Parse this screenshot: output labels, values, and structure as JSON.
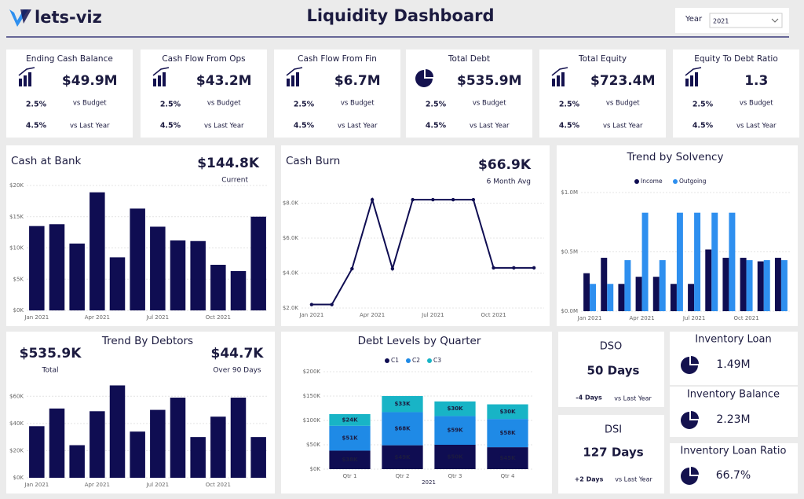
{
  "header": {
    "logo": "lets-viz",
    "title": "Liquidity Dashboard",
    "filter_label": "Year",
    "filter_value": "2021"
  },
  "kpis": [
    {
      "title": "Ending Cash Balance",
      "value": "$49.9M",
      "budget_change": "2.5%",
      "budget_label": "vs Budget",
      "last_year_change": "4.5%",
      "last_year_label": "vs Last Year"
    },
    {
      "title": "Cash Flow From Ops",
      "value": "$43.2M",
      "budget_change": "2.5%",
      "budget_label": "vs Budget",
      "last_year_change": "4.5%",
      "last_year_label": "vs Last Year"
    },
    {
      "title": "Cash Flow From Fin",
      "value": "$6.7M",
      "budget_change": "2.5%",
      "budget_label": "vs Budget",
      "last_year_change": "4.5%",
      "last_year_label": "vs Last Year"
    },
    {
      "title": "Total Debt",
      "value": "$535.9M",
      "budget_change": "2.5%",
      "budget_label": "vs Budget",
      "last_year_change": "4.5%",
      "last_year_label": "vs Last Year"
    },
    {
      "title": "Total Equity",
      "value": "$723.4M",
      "budget_change": "2.5%",
      "budget_label": "vs Budget",
      "last_year_change": "4.5%",
      "last_year_label": "vs Last Year"
    },
    {
      "title": "Equity To Debt Ratio",
      "value": "1.3",
      "budget_change": "2.5%",
      "budget_label": "vs Budget",
      "last_year_change": "4.5%",
      "last_year_label": "vs Last Year"
    }
  ],
  "chart_data": [
    {
      "type": "bar",
      "title": "Cash at Bank",
      "kpis": [
        {
          "value": "$144.8K",
          "label": "Current"
        }
      ],
      "categories": [
        "Jan 2021",
        null,
        null,
        "Apr 2021",
        null,
        null,
        "Jul 2021",
        null,
        null,
        "Oct 2021",
        null,
        null
      ],
      "values": [
        13500,
        13800,
        10700,
        18900,
        8500,
        16300,
        13400,
        11200,
        11100,
        7300,
        6300,
        15000
      ],
      "color": "#0f0d52",
      "ylim": [
        0,
        20000
      ],
      "yticks": [
        {
          "value": 0,
          "label": "$0K"
        },
        {
          "value": 5000,
          "label": "$5K"
        },
        {
          "value": 10000,
          "label": "$10K"
        },
        {
          "value": 15000,
          "label": "$15K"
        },
        {
          "value": 20000,
          "label": "$20K"
        }
      ],
      "grid": true
    },
    {
      "type": "line",
      "title": "Cash Burn",
      "kpis": [
        {
          "value": "$66.9K",
          "label": "6 Month Avg"
        }
      ],
      "categories": [
        "Jan 2021",
        null,
        null,
        "Apr 2021",
        null,
        null,
        "Jul 2021",
        null,
        null,
        "Oct 2021",
        null,
        null
      ],
      "values": [
        2200,
        2200,
        4250,
        8200,
        4250,
        8200,
        8200,
        8200,
        8200,
        4300,
        4300,
        4300
      ],
      "color": "#0f0d52",
      "ylim": [
        2000,
        8700
      ],
      "yticks": [
        {
          "value": 2000,
          "label": "$2.0K"
        },
        {
          "value": 4000,
          "label": "$4.0K"
        },
        {
          "value": 6000,
          "label": "$6.0K"
        },
        {
          "value": 8000,
          "label": "$8.0K"
        }
      ],
      "grid": true
    },
    {
      "type": "grouped_bar",
      "title": "Trend by Solvency",
      "legend": "top",
      "categories": [
        "Jan 2021",
        null,
        null,
        "Apr 2021",
        null,
        null,
        "Jul 2021",
        null,
        null,
        "Oct 2021",
        null,
        null
      ],
      "series": [
        {
          "name": "Income",
          "color": "#0f0d52",
          "values": [
            320000,
            450000,
            230000,
            290000,
            290000,
            230000,
            230000,
            520000,
            450000,
            450000,
            420000,
            450000
          ]
        },
        {
          "name": "Outgoing",
          "color": "#2e8fef",
          "values": [
            230000,
            230000,
            430000,
            830000,
            430000,
            830000,
            830000,
            830000,
            830000,
            430000,
            430000,
            430000
          ]
        }
      ],
      "ylim": [
        0,
        1000000
      ],
      "yticks": [
        {
          "value": 0,
          "label": "$0.0M"
        },
        {
          "value": 500000,
          "label": "$0.5M"
        },
        {
          "value": 1000000,
          "label": "$1.0M"
        }
      ],
      "grid": true
    },
    {
      "type": "bar",
      "title": "Trend By Debtors",
      "kpis": [
        {
          "value": "$535.9K",
          "label": "Total"
        },
        {
          "value": "$44.7K",
          "label": "Over 90 Days"
        }
      ],
      "categories": [
        "Jan 2021",
        null,
        null,
        "Apr 2021",
        null,
        null,
        "Jul 2021",
        null,
        null,
        "Oct 2021",
        null,
        null
      ],
      "values": [
        38000,
        51000,
        24000,
        49000,
        68000,
        34000,
        50000,
        59000,
        30000,
        45000,
        59000,
        30000
      ],
      "color": "#0f0d52",
      "ylim": [
        0,
        70000
      ],
      "yticks": [
        {
          "value": 0,
          "label": "$0K"
        },
        {
          "value": 20000,
          "label": "$20K"
        },
        {
          "value": 40000,
          "label": "$40K"
        },
        {
          "value": 60000,
          "label": "$60K"
        }
      ],
      "grid": true
    },
    {
      "type": "stacked_bar",
      "title": "Debt Levels by Quarter",
      "legend": "top",
      "xlabel": "2021",
      "categories": [
        "Qtr 1",
        "Qtr 2",
        "Qtr 3",
        "Qtr 4"
      ],
      "series": [
        {
          "name": "C1",
          "color": "#0f0d52",
          "values": [
            38000,
            49000,
            50000,
            45000
          ],
          "value_labels": [
            "$38K",
            "$49K",
            "$50K",
            "$45K"
          ]
        },
        {
          "name": "C2",
          "color": "#1f8ae6",
          "values": [
            51000,
            68000,
            59000,
            58000
          ],
          "value_labels": [
            "$51K",
            "$68K",
            "$59K",
            "$58K"
          ]
        },
        {
          "name": "C3",
          "color": "#18b4c6",
          "values": [
            24000,
            33000,
            30000,
            30000
          ],
          "value_labels": [
            "$24K",
            "$33K",
            "$30K",
            "$30K"
          ]
        }
      ],
      "ylim": [
        0,
        200000
      ],
      "yticks": [
        {
          "value": 0,
          "label": "$0K"
        },
        {
          "value": 50000,
          "label": "$50K"
        },
        {
          "value": 100000,
          "label": "$100K"
        },
        {
          "value": 150000,
          "label": "$150K"
        },
        {
          "value": 200000,
          "label": "$200K"
        }
      ],
      "grid": true
    }
  ],
  "cards": [
    {
      "title": "DSO",
      "value": "50 Days",
      "change": "-4 Days",
      "change_label": "vs Last Year"
    },
    {
      "title": "DSI",
      "value": "127 Days",
      "change": "+2 Days",
      "change_label": "vs Last Year"
    },
    {
      "title": "Inventory Loan",
      "value": "1.49M"
    },
    {
      "title": "Inventory Balance",
      "value": "2.23M"
    },
    {
      "title": "Inventory Loan Ratio",
      "value": "66.7%"
    }
  ]
}
